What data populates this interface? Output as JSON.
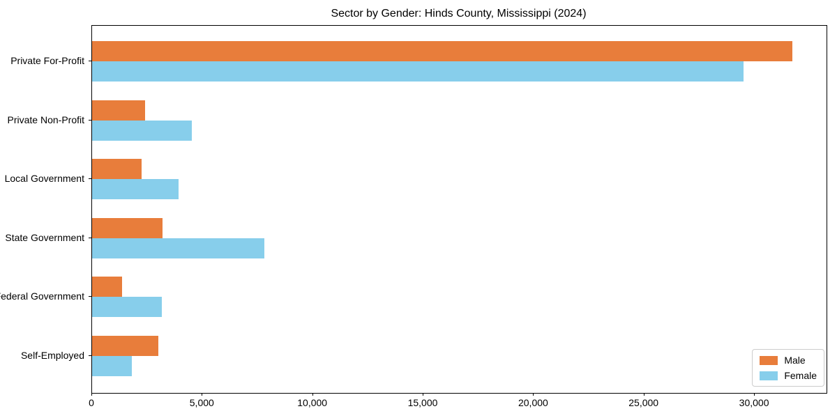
{
  "chart_data": {
    "type": "bar",
    "orientation": "horizontal",
    "title": "Sector by Gender: Hinds County, Mississippi (2024)",
    "categories": [
      "Private For-Profit",
      "Private Non-Profit",
      "Local Government",
      "State Government",
      "Federal Government",
      "Self-Employed"
    ],
    "series": [
      {
        "name": "Male",
        "color": "#e87d3b",
        "values": [
          31700,
          2400,
          2250,
          3200,
          1350,
          3000
        ]
      },
      {
        "name": "Female",
        "color": "#87ceeb",
        "values": [
          29500,
          4500,
          3900,
          7800,
          3150,
          1800
        ]
      }
    ],
    "xlabel": "",
    "ylabel": "",
    "xlim": [
      0,
      33250
    ],
    "xticks": [
      0,
      5000,
      10000,
      15000,
      20000,
      25000,
      30000
    ],
    "xtick_labels": [
      "0",
      "5,000",
      "10,000",
      "15,000",
      "20,000",
      "25,000",
      "30,000"
    ],
    "legend_position": "lower right",
    "grid": false
  }
}
